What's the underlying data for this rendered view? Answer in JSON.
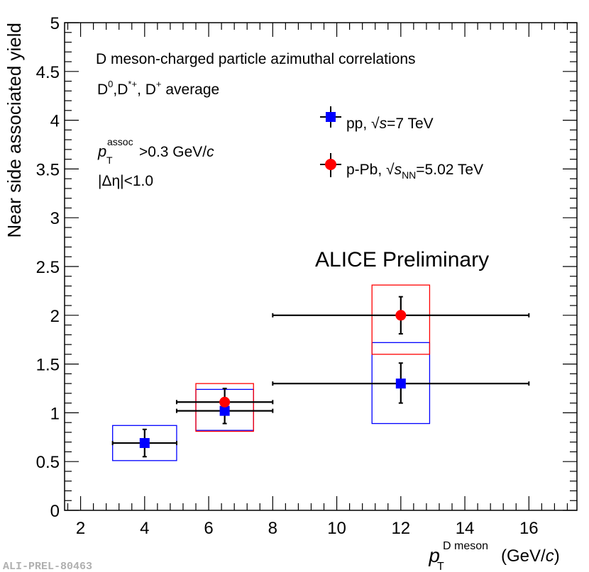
{
  "chart_data": {
    "type": "scatter",
    "title": "",
    "xlabel": {
      "symbol": "p",
      "sub": "T",
      "sup": "D meson",
      "unit": "(GeV/c)"
    },
    "ylabel": "Near side associated yield",
    "xlim": [
      1.5,
      17.5
    ],
    "ylim": [
      0,
      5
    ],
    "x_ticks": [
      2,
      4,
      6,
      8,
      10,
      12,
      14,
      16
    ],
    "y_ticks": [
      0,
      0.5,
      1,
      1.5,
      2,
      2.5,
      3,
      3.5,
      4,
      4.5,
      5
    ],
    "x_tick_labels": [
      "2",
      "4",
      "6",
      "8",
      "10",
      "12",
      "14",
      "16"
    ],
    "y_tick_labels": [
      "0",
      "0.5",
      "1",
      "1.5",
      "2",
      "2.5",
      "3",
      "3.5",
      "4",
      "4.5",
      "5"
    ],
    "series": [
      {
        "name": "pp",
        "legend": {
          "prefix": "pp, ",
          "sqrt": "s",
          "sqrt_sub": "",
          "suffix": "=7 TeV"
        },
        "color": "#0000ff",
        "marker": "square",
        "points": [
          {
            "x": 4,
            "y": 0.69,
            "xerr": [
              3,
              5
            ],
            "yerr": [
              0.55,
              0.83
            ],
            "sys": [
              3.0,
              5.0,
              0.51,
              0.87
            ]
          },
          {
            "x": 6.5,
            "y": 1.02,
            "xerr": [
              5,
              8
            ],
            "yerr": [
              0.89,
              1.15
            ],
            "sys": [
              5.6,
              7.4,
              0.82,
              1.24
            ]
          },
          {
            "x": 12,
            "y": 1.3,
            "xerr": [
              8,
              16
            ],
            "yerr": [
              1.1,
              1.51
            ],
            "sys": [
              11.1,
              12.9,
              0.89,
              1.72
            ]
          }
        ]
      },
      {
        "name": "p-Pb",
        "legend": {
          "prefix": "p-Pb, ",
          "sqrt": "s",
          "sqrt_sub": "NN",
          "suffix": "=5.02 TeV"
        },
        "color": "#ff0000",
        "marker": "circle",
        "points": [
          {
            "x": 6.5,
            "y": 1.11,
            "xerr": [
              5,
              8
            ],
            "yerr": [
              0.98,
              1.25
            ],
            "sys": [
              5.6,
              7.4,
              0.81,
              1.3
            ]
          },
          {
            "x": 12,
            "y": 2.0,
            "xerr": [
              8,
              16
            ],
            "yerr": [
              1.81,
              2.19
            ],
            "sys": [
              11.1,
              12.9,
              1.6,
              2.31
            ]
          }
        ]
      }
    ],
    "annotations": {
      "line1": "D meson-charged particle azimuthal correlations",
      "line2": {
        "d0": "D",
        "d0_sup": "0",
        "sep1": ",D",
        "dstar_sup": "*+",
        "sep2": ", D",
        "dplus_sup": "+",
        "suffix": " average"
      },
      "line3": {
        "symbol": "p",
        "sub": "T",
        "sup": "assoc",
        "suffix": ">0.3 GeV/",
        "unit_c": "c"
      },
      "line4": "|Δη|<1.0",
      "preliminary": "ALICE Preliminary"
    }
  },
  "footer_id": "ALI-PREL-80463"
}
